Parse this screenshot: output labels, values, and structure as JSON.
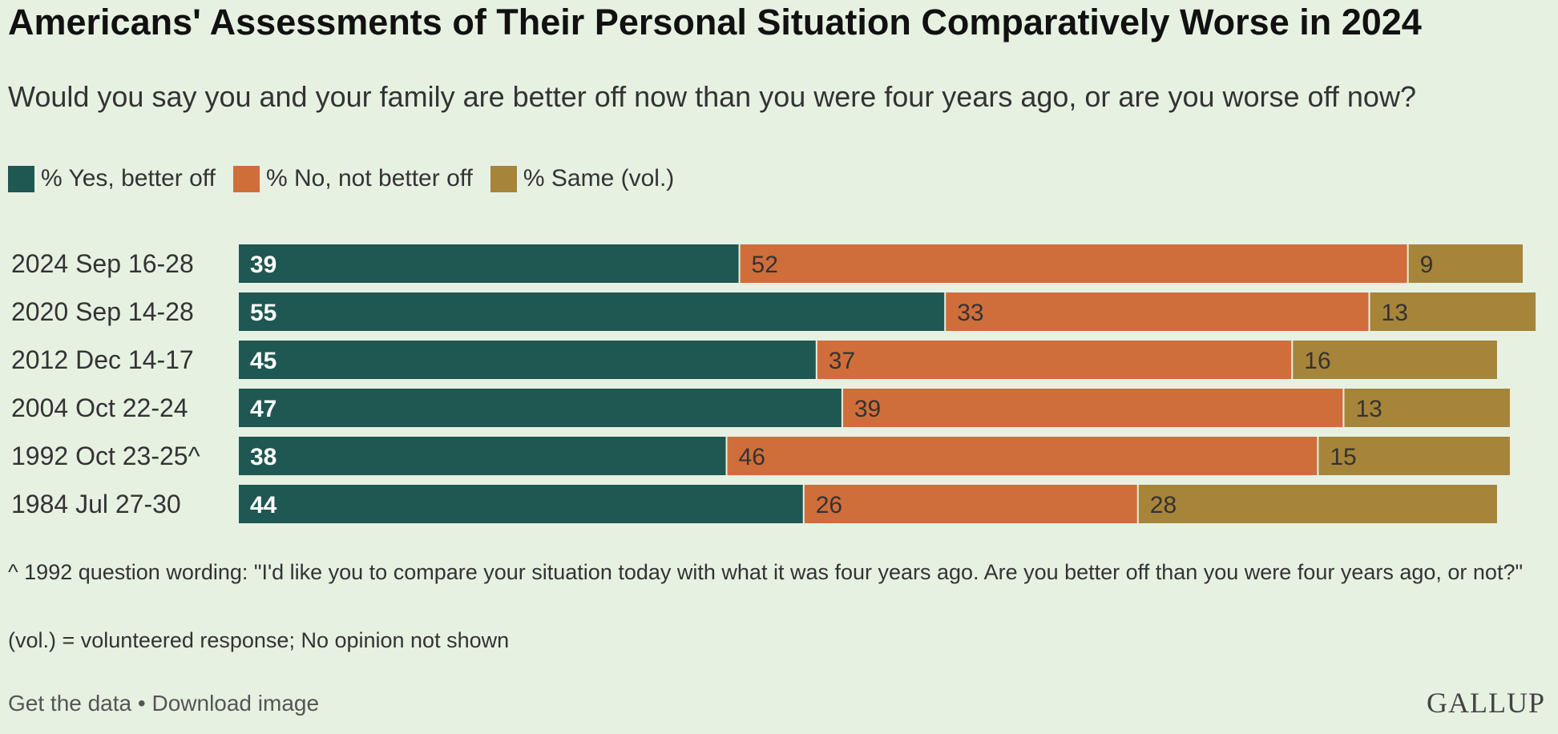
{
  "header": {
    "title": "Americans' Assessments of Their Personal Situation Comparatively Worse in 2024",
    "subtitle": "Would you say you and your family are better off now than you were four years ago, or are you worse off now?"
  },
  "legend": [
    {
      "label": "% Yes, better off",
      "color": "#1f5752"
    },
    {
      "label": "% No, not better off",
      "color": "#cf6e3b"
    },
    {
      "label": "% Same (vol.)",
      "color": "#a6843a"
    }
  ],
  "chart_data": {
    "type": "bar",
    "orientation": "horizontal",
    "stacked": true,
    "title": "Americans' Assessments of Their Personal Situation Comparatively Worse in 2024",
    "subtitle": "Would you say you and your family are better off now than you were four years ago, or are you worse off now?",
    "categories": [
      "2024 Sep 16-28",
      "2020 Sep 14-28",
      "2012 Dec 14-17",
      "2004 Oct 22-24",
      "1992 Oct 23-25^",
      "1984 Jul 27-30"
    ],
    "series": [
      {
        "name": "% Yes, better off",
        "color": "#1f5752",
        "values": [
          39,
          55,
          45,
          47,
          38,
          44
        ]
      },
      {
        "name": "% No, not better off",
        "color": "#cf6e3b",
        "values": [
          52,
          33,
          37,
          39,
          46,
          26
        ]
      },
      {
        "name": "% Same (vol.)",
        "color": "#a6843a",
        "values": [
          9,
          13,
          16,
          13,
          15,
          28
        ]
      }
    ],
    "xlim": [
      0,
      100
    ],
    "grid": false,
    "legend_position": "top-left"
  },
  "notes": {
    "wording": "^ 1992 question wording: \"I'd like you to compare your situation today with what it was four years ago. Are you better off than you were four years ago, or not?\"",
    "vol": "(vol.) = volunteered response; No opinion not shown"
  },
  "footer": {
    "get_data": "Get the data",
    "separator": " • ",
    "download": "Download image",
    "brand": "GALLUP"
  }
}
